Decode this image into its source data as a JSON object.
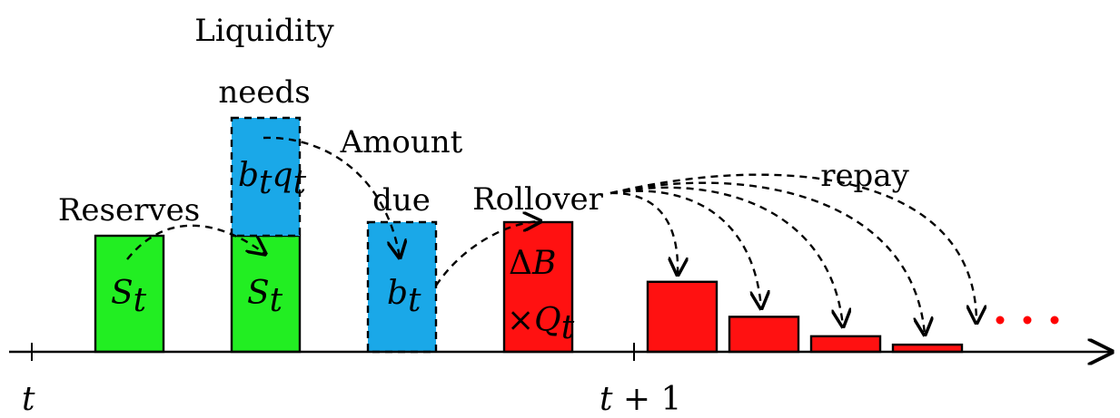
{
  "colors": {
    "reserves": "#22ee22",
    "liquidity": "#1aa8e8",
    "rollover": "#ff1111",
    "dots": "#ff0000"
  },
  "labels": {
    "reserves": "Reserves",
    "liquidity_line1": "Liquidity",
    "liquidity_line2": "needs",
    "amount_line1": "Amount",
    "amount_line2": "due",
    "rollover": "Rollover",
    "repay": "repay"
  },
  "math": {
    "s_base": "S",
    "s_sub": "t",
    "bq_b": "b",
    "bq_sub1": "t",
    "bq_q": "q",
    "bq_sub2": "t",
    "b_base": "b",
    "b_sub": "t",
    "delta": "Δ",
    "delta_b": "B",
    "times": "×",
    "q_base": "Q",
    "q_sub": "t"
  },
  "axis": {
    "tick_t": "t",
    "tick_t1_var": "t",
    "tick_t1_rest": " + 1"
  },
  "repay_bars": [
    {
      "level": 0.54
    },
    {
      "level": 0.27
    },
    {
      "level": 0.12
    },
    {
      "level": 0.055
    }
  ]
}
